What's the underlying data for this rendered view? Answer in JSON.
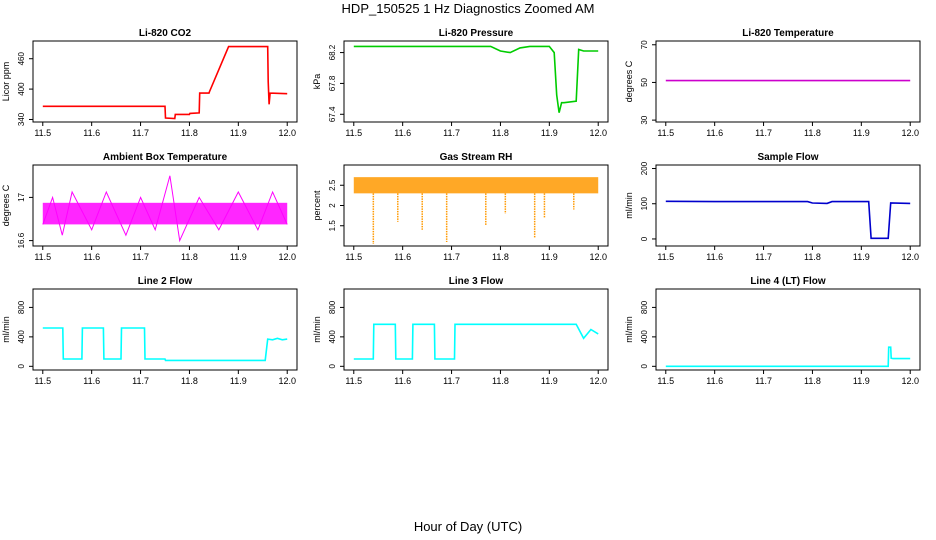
{
  "figure": {
    "title": "HDP_150525  1 Hz Diagnostics Zoomed AM",
    "xlabel": "Hour of Day (UTC)"
  },
  "chart_data": [
    {
      "type": "line",
      "title": "Li-820 CO2",
      "ylabel": "Licor ppm",
      "color": "#ff0000",
      "xlim": [
        11.48,
        12.02
      ],
      "ylim": [
        335,
        495
      ],
      "xticks": [
        "11.5",
        "11.6",
        "11.7",
        "11.8",
        "11.9",
        "12.0"
      ],
      "yticks": [
        340,
        400,
        460
      ],
      "x": [
        11.5,
        11.75,
        11.751,
        11.77,
        11.771,
        11.8,
        11.801,
        11.82,
        11.821,
        11.84,
        11.841,
        11.88,
        11.881,
        11.96,
        11.961,
        11.963,
        11.965,
        12.0
      ],
      "y": [
        366,
        366,
        343,
        342,
        350,
        350,
        352,
        353,
        392,
        392,
        395,
        484,
        484,
        484,
        415,
        370,
        392,
        391
      ]
    },
    {
      "type": "line",
      "title": "Li-820 Pressure",
      "ylabel": "kPa",
      "color": "#00cc00",
      "xlim": [
        11.48,
        12.02
      ],
      "ylim": [
        67.3,
        68.35
      ],
      "xticks": [
        "11.5",
        "11.6",
        "11.7",
        "11.8",
        "11.9",
        "12.0"
      ],
      "yticks": [
        67.4,
        67.8,
        68.2
      ],
      "x": [
        11.5,
        11.6,
        11.7,
        11.78,
        11.8,
        11.82,
        11.84,
        11.86,
        11.9,
        11.91,
        11.915,
        11.92,
        11.925,
        11.93,
        11.955,
        11.96,
        11.97,
        12.0
      ],
      "y": [
        68.28,
        68.28,
        68.28,
        68.28,
        68.22,
        68.2,
        68.26,
        68.28,
        68.28,
        68.2,
        67.65,
        67.42,
        67.55,
        67.55,
        67.57,
        68.24,
        68.22,
        68.22
      ]
    },
    {
      "type": "line",
      "title": "Li-820 Temperature",
      "ylabel": "degrees C",
      "color": "#cc00cc",
      "xlim": [
        11.48,
        12.02
      ],
      "ylim": [
        29,
        72
      ],
      "xticks": [
        "11.5",
        "11.6",
        "11.7",
        "11.8",
        "11.9",
        "12.0"
      ],
      "yticks": [
        30,
        50,
        70
      ],
      "x": [
        11.5,
        12.0
      ],
      "y": [
        51,
        51
      ]
    },
    {
      "type": "line",
      "title": "Ambient Box Temperature",
      "ylabel": "degrees C",
      "color": "#ff00ff",
      "xlim": [
        11.48,
        12.02
      ],
      "ylim": [
        16.55,
        17.3
      ],
      "xticks": [
        "11.5",
        "11.6",
        "11.7",
        "11.8",
        "11.9",
        "12.0"
      ],
      "yticks": [
        16.6,
        17.0
      ],
      "range_band": {
        "x": [
          11.5,
          12.0
        ],
        "low": 16.75,
        "high": 16.95
      },
      "x": [
        11.5,
        11.52,
        11.54,
        11.56,
        11.6,
        11.63,
        11.67,
        11.7,
        11.73,
        11.76,
        11.78,
        11.82,
        11.86,
        11.9,
        11.94,
        11.97,
        12.0
      ],
      "y": [
        16.75,
        17.0,
        16.65,
        17.05,
        16.7,
        17.05,
        16.65,
        17.0,
        16.7,
        17.2,
        16.6,
        17.0,
        16.7,
        17.05,
        16.7,
        17.05,
        16.75
      ]
    },
    {
      "type": "scatter",
      "title": "Gas Stream RH",
      "ylabel": "percent",
      "color": "#ff9900",
      "xlim": [
        11.48,
        12.02
      ],
      "ylim": [
        1.0,
        3.0
      ],
      "xticks": [
        "11.5",
        "11.6",
        "11.7",
        "11.8",
        "11.9",
        "12.0"
      ],
      "yticks": [
        1.5,
        2.0,
        2.5
      ],
      "range_band": {
        "x": [
          11.5,
          12.0
        ],
        "low": 2.3,
        "high": 2.7
      },
      "x": [
        11.54,
        11.59,
        11.64,
        11.69,
        11.77,
        11.81,
        11.87,
        11.89,
        11.95
      ],
      "y": [
        1.05,
        1.6,
        1.4,
        1.1,
        1.5,
        1.8,
        1.2,
        1.7,
        1.9
      ]
    },
    {
      "type": "line",
      "title": "Sample Flow",
      "ylabel": "ml/min",
      "color": "#0000cc",
      "xlim": [
        11.48,
        12.02
      ],
      "ylim": [
        -20,
        210
      ],
      "xticks": [
        "11.5",
        "11.6",
        "11.7",
        "11.8",
        "11.9",
        "12.0"
      ],
      "yticks": [
        0,
        100,
        200
      ],
      "x": [
        11.5,
        11.6,
        11.7,
        11.79,
        11.8,
        11.83,
        11.84,
        11.915,
        11.92,
        11.955,
        11.96,
        12.0
      ],
      "y": [
        107,
        106,
        106,
        106,
        102,
        101,
        106,
        106,
        2,
        2,
        102,
        101
      ]
    },
    {
      "type": "line",
      "title": "Line 2 Flow",
      "ylabel": "ml/min",
      "color": "#00ffff",
      "xlim": [
        11.48,
        12.02
      ],
      "ylim": [
        -50,
        1050
      ],
      "xticks": [
        "11.5",
        "11.6",
        "11.7",
        "11.8",
        "11.9",
        "12.0"
      ],
      "yticks": [
        0,
        400,
        800
      ],
      "x": [
        11.5,
        11.541,
        11.542,
        11.58,
        11.581,
        11.624,
        11.625,
        11.66,
        11.661,
        11.708,
        11.709,
        11.75,
        11.751,
        11.955,
        11.96,
        11.97,
        11.98,
        11.99,
        12.0
      ],
      "y": [
        520,
        520,
        100,
        100,
        520,
        520,
        100,
        100,
        520,
        520,
        100,
        100,
        80,
        80,
        370,
        360,
        380,
        360,
        370
      ]
    },
    {
      "type": "line",
      "title": "Line 3 Flow",
      "ylabel": "ml/min",
      "color": "#00ffff",
      "xlim": [
        11.48,
        12.02
      ],
      "ylim": [
        -50,
        1050
      ],
      "xticks": [
        "11.5",
        "11.6",
        "11.7",
        "11.8",
        "11.9",
        "12.0"
      ],
      "yticks": [
        0,
        400,
        800
      ],
      "x": [
        11.5,
        11.54,
        11.541,
        11.585,
        11.586,
        11.62,
        11.621,
        11.665,
        11.666,
        11.706,
        11.707,
        11.8,
        11.9,
        11.955,
        11.97,
        11.985,
        12.0
      ],
      "y": [
        100,
        100,
        570,
        570,
        100,
        100,
        570,
        570,
        100,
        100,
        570,
        570,
        570,
        570,
        380,
        500,
        440
      ]
    },
    {
      "type": "line",
      "title": "Line 4 (LT) Flow",
      "ylabel": "ml/min",
      "color": "#00ffff",
      "xlim": [
        11.48,
        12.02
      ],
      "ylim": [
        -50,
        1050
      ],
      "xticks": [
        "11.5",
        "11.6",
        "11.7",
        "11.8",
        "11.9",
        "12.0"
      ],
      "yticks": [
        0,
        400,
        800
      ],
      "x": [
        11.5,
        11.7,
        11.9,
        11.955,
        11.956,
        11.96,
        11.961,
        11.965,
        12.0
      ],
      "y": [
        0,
        0,
        0,
        0,
        260,
        260,
        110,
        105,
        105
      ]
    }
  ]
}
